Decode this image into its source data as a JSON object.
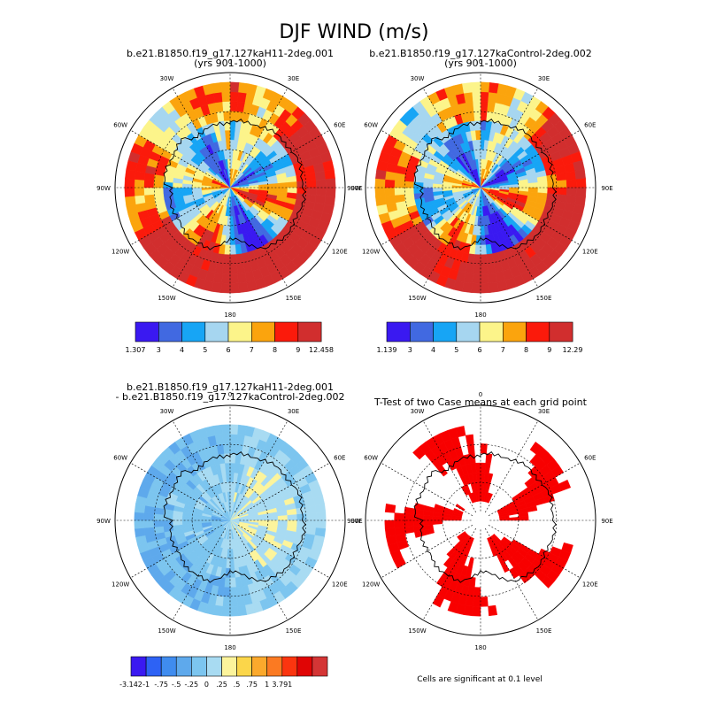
{
  "figure": {
    "title": "DJF WIND (m/s)"
  },
  "colors": {
    "wind_palette": [
      "#3a19f1",
      "#4169e1",
      "#17a5f5",
      "#a6d6f0",
      "#fcf48a",
      "#fba40d",
      "#fb1a0b",
      "#d12e2e"
    ],
    "diff_palette": [
      "#3a19f1",
      "#2d62f5",
      "#3f8cef",
      "#5ea9ec",
      "#7cc5ef",
      "#a8dbf2",
      "#fcf49c",
      "#fbd64a",
      "#fba92c",
      "#fb7a22",
      "#fb350f",
      "#e00505",
      "#d43535"
    ],
    "ttest": "#f80000"
  },
  "chart_data": [
    {
      "type": "heatmap",
      "title": "b.e21.B1850.f19_g17.127kaH11-2deg.001",
      "subtitle": "(yrs 901-1000)",
      "projection": "polar stereographic, south pole",
      "longitude_labels": [
        "0",
        "30E",
        "60E",
        "90E",
        "120E",
        "150E",
        "180",
        "150W",
        "120W",
        "90W",
        "60W",
        "30W"
      ],
      "colorbar": {
        "labels": [
          "1.307",
          "3",
          "4",
          "5",
          "6",
          "7",
          "8",
          "9",
          "12.458"
        ],
        "min": 1.307,
        "max": 12.458,
        "levels": [
          3,
          4,
          5,
          6,
          7,
          8,
          9
        ]
      }
    },
    {
      "type": "heatmap",
      "title": "b.e21.B1850.f19_g17.127kaControl-2deg.002",
      "subtitle": "(yrs 901-1000)",
      "projection": "polar stereographic, south pole",
      "longitude_labels": [
        "0",
        "30E",
        "60E",
        "90E",
        "120E",
        "150E",
        "180",
        "150W",
        "120W",
        "90W",
        "60W",
        "30W"
      ],
      "colorbar": {
        "labels": [
          "1.139",
          "3",
          "4",
          "5",
          "6",
          "7",
          "8",
          "9",
          "12.29"
        ],
        "min": 1.139,
        "max": 12.29,
        "levels": [
          3,
          4,
          5,
          6,
          7,
          8,
          9
        ]
      }
    },
    {
      "type": "heatmap",
      "title": "b.e21.B1850.f19_g17.127kaH11-2deg.001",
      "subtitle": "- b.e21.B1850.f19_g17.127kaControl-2deg.002",
      "projection": "polar stereographic, south pole",
      "longitude_labels": [
        "0",
        "30E",
        "60E",
        "90E",
        "120E",
        "150E",
        "180",
        "150W",
        "120W",
        "90W",
        "60W",
        "30W"
      ],
      "colorbar": {
        "labels": [
          "-3.142",
          "-1",
          "-.75",
          "-.5",
          "-.25",
          "0",
          ".25",
          ".5",
          ".75",
          "1",
          "3.791"
        ],
        "min": -3.142,
        "max": 3.791,
        "levels": [
          -1,
          -0.75,
          -0.5,
          -0.25,
          0,
          0.25,
          0.5,
          0.75,
          1
        ]
      }
    },
    {
      "type": "heatmap",
      "title": "T-Test of two Case means at each grid point",
      "projection": "polar stereographic, south pole",
      "longitude_labels": [
        "0",
        "30E",
        "60E",
        "90E",
        "120E",
        "150E",
        "180",
        "150W",
        "120W",
        "90W",
        "60W",
        "30W"
      ],
      "note": "Cells are significant at 0.1 level"
    }
  ]
}
